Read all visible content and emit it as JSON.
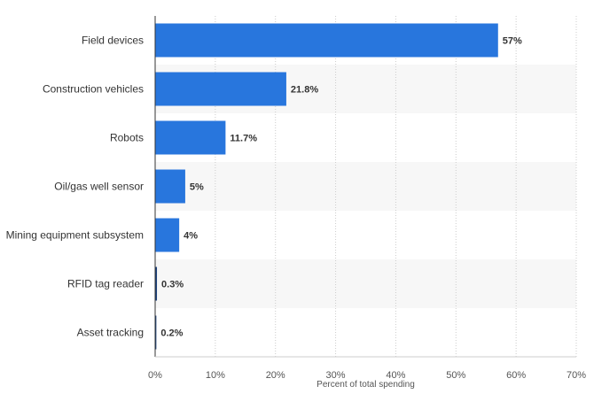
{
  "chart_data": {
    "type": "bar",
    "orientation": "horizontal",
    "title": "",
    "xlabel": "Percent of total spending",
    "ylabel": "",
    "categories": [
      "Field devices",
      "Construction vehicles",
      "Robots",
      "Oil/gas well sensor",
      "Mining equipment subsystem",
      "RFID tag reader",
      "Asset tracking"
    ],
    "values": [
      57,
      21.8,
      11.7,
      5,
      4,
      0.3,
      0.2
    ],
    "data_labels": [
      "57%",
      "21.8%",
      "11.7%",
      "5%",
      "4%",
      "0.3%",
      "0.2%"
    ],
    "xlim": [
      0,
      70
    ],
    "xticks": [
      0,
      10,
      20,
      30,
      40,
      50,
      60,
      70
    ],
    "xtick_labels": [
      "0%",
      "10%",
      "20%",
      "30%",
      "40%",
      "50%",
      "60%",
      "70%"
    ],
    "grid": true,
    "legend": "none"
  },
  "colors": {
    "bar": "#2876dd",
    "bar_small": "#1a3f7a",
    "band": "#f7f7f7",
    "grid": "#cccccc",
    "axis": "#333333"
  }
}
